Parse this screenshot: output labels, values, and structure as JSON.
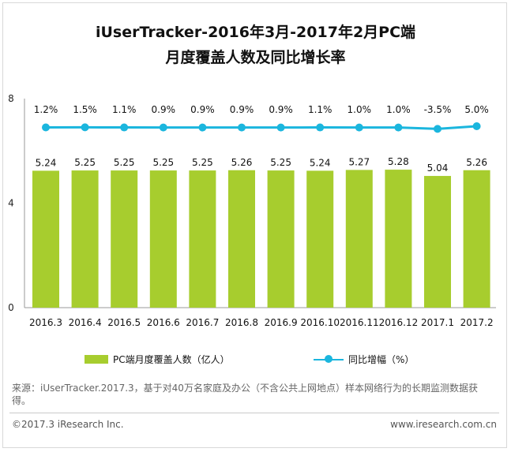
{
  "chart_data": {
    "type": "bar",
    "title": [
      "iUserTracker-2016年3月-2017年2月PC端",
      "月度覆盖人数及同比增长率"
    ],
    "categories": [
      "2016.3",
      "2016.4",
      "2016.5",
      "2016.6",
      "2016.7",
      "2016.8",
      "2016.9",
      "2016.10",
      "2016.11",
      "2016.12",
      "2017.1",
      "2017.2"
    ],
    "series": [
      {
        "name": "PC端月度覆盖人数（亿人）",
        "type": "bar",
        "color": "#a7cd2e",
        "values": [
          5.24,
          5.25,
          5.25,
          5.25,
          5.25,
          5.26,
          5.25,
          5.24,
          5.27,
          5.28,
          5.04,
          5.26
        ],
        "labels": [
          "5.24",
          "5.25",
          "5.25",
          "5.25",
          "5.25",
          "5.26",
          "5.25",
          "5.24",
          "5.27",
          "5.28",
          "5.04",
          "5.26"
        ]
      },
      {
        "name": "同比增幅（%）",
        "type": "line",
        "color": "#1bb6de",
        "values": [
          1.2,
          1.5,
          1.1,
          0.9,
          0.9,
          0.9,
          0.9,
          1.1,
          1.0,
          1.0,
          -3.5,
          5.0
        ],
        "labels": [
          "1.2%",
          "1.5%",
          "1.1%",
          "0.9%",
          "0.9%",
          "0.9%",
          "0.9%",
          "1.1%",
          "1.0%",
          "1.0%",
          "-3.5%",
          "5.0%"
        ]
      }
    ],
    "yaxis": {
      "ticks": [
        "0",
        "4",
        "8"
      ],
      "ylim": [
        0,
        8
      ]
    },
    "legend": "bottom",
    "grid": false
  },
  "note": "来源：iUserTracker.2017.3，基于对40万名家庭及办公（不含公共上网地点）样本网络行为的长期监测数据获得。",
  "footer": {
    "copyright": "©2017.3 iResearch Inc.",
    "website": "www.iresearch.com.cn"
  }
}
